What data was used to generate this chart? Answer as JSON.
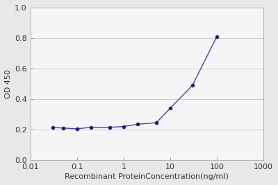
{
  "x_values": [
    0.03,
    0.05,
    0.1,
    0.2,
    0.5,
    1.0,
    2.0,
    5.0,
    10.0,
    30.0,
    100.0
  ],
  "y_values": [
    0.215,
    0.21,
    0.205,
    0.215,
    0.215,
    0.22,
    0.235,
    0.245,
    0.34,
    0.49,
    0.81
  ],
  "line_color": "#4444aa",
  "marker_color": "#1a1a7a",
  "xlabel": "Recombinant ProteinConcentration(ng/ml)",
  "ylabel": "OD 450",
  "xlim": [
    0.01,
    1000
  ],
  "ylim": [
    0,
    1.0
  ],
  "yticks": [
    0,
    0.2,
    0.4,
    0.6,
    0.8,
    1
  ],
  "xticks": [
    0.01,
    0.1,
    1,
    10,
    100,
    1000
  ],
  "background_color": "#e8e8e8",
  "plot_bg_color": "#f5f5f5",
  "grid_color": "#cccccc",
  "xlabel_fontsize": 8,
  "ylabel_fontsize": 8,
  "tick_fontsize": 8,
  "xlabel_color": "#333333",
  "ylabel_color": "#333333",
  "tick_color": "#333333",
  "line_width": 1.0,
  "marker_size": 3.5
}
